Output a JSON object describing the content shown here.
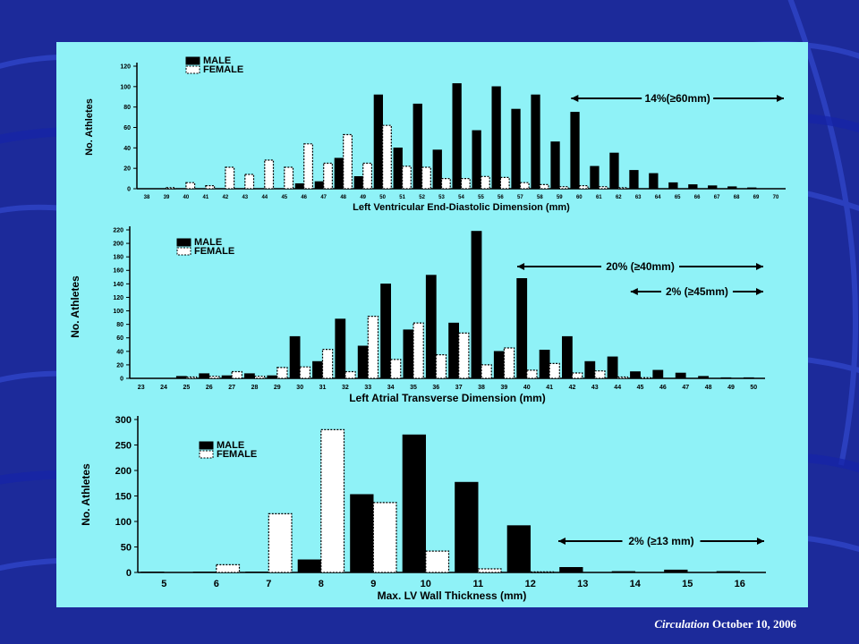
{
  "slide": {
    "background": "#1c2a9a",
    "panel_color": "#8ff2f7",
    "citation_journal": "Circulation",
    "citation_date": "October 10, 2006"
  },
  "chart_data": [
    {
      "type": "bar",
      "xlabel": "Left Ventricular End-Diastolic Dimension (mm)",
      "ylabel": "No. Athletes",
      "ylim": [
        0,
        120
      ],
      "yticks": [
        0,
        20,
        40,
        60,
        80,
        100,
        120
      ],
      "legend": "top-left",
      "categories": [
        "38",
        "39",
        "40",
        "41",
        "42",
        "43",
        "44",
        "45",
        "46",
        "47",
        "48",
        "49",
        "50",
        "51",
        "52",
        "53",
        "54",
        "55",
        "56",
        "57",
        "58",
        "59",
        "60",
        "61",
        "62",
        "63",
        "64",
        "65",
        "66",
        "67",
        "68",
        "69",
        "70"
      ],
      "series": [
        {
          "name": "MALE",
          "color": "#000000",
          "values": [
            0,
            0,
            0,
            0,
            0,
            0,
            0,
            0,
            5,
            7,
            30,
            12,
            92,
            40,
            83,
            38,
            103,
            57,
            100,
            78,
            92,
            46,
            75,
            22,
            35,
            18,
            15,
            6,
            4,
            3,
            2,
            1,
            0
          ]
        },
        {
          "name": "FEMALE",
          "color": "#ffffff",
          "values": [
            0,
            1,
            6,
            3,
            21,
            14,
            28,
            21,
            44,
            25,
            53,
            25,
            62,
            22,
            21,
            10,
            10,
            12,
            11,
            6,
            4,
            2,
            3,
            2,
            1,
            0,
            0,
            0,
            0,
            0,
            0,
            0,
            0
          ]
        }
      ],
      "annotations": [
        {
          "text": "14%(≥60mm)",
          "range": [
            "60",
            "70"
          ]
        }
      ]
    },
    {
      "type": "bar",
      "xlabel": "Left Atrial Transverse Dimension (mm)",
      "ylabel": "No. Athletes",
      "ylim": [
        0,
        220
      ],
      "yticks": [
        0,
        20,
        40,
        60,
        80,
        100,
        120,
        140,
        160,
        180,
        200,
        220
      ],
      "legend": "top-left",
      "categories": [
        "23",
        "24",
        "25",
        "26",
        "27",
        "28",
        "29",
        "30",
        "31",
        "32",
        "33",
        "34",
        "35",
        "36",
        "37",
        "38",
        "39",
        "40",
        "41",
        "42",
        "43",
        "44",
        "45",
        "46",
        "47",
        "48",
        "49",
        "50"
      ],
      "series": [
        {
          "name": "MALE",
          "color": "#000000",
          "values": [
            0,
            0,
            3,
            7,
            4,
            7,
            4,
            62,
            25,
            88,
            48,
            140,
            72,
            153,
            82,
            218,
            40,
            148,
            42,
            62,
            25,
            32,
            10,
            12,
            8,
            3,
            1,
            1
          ]
        },
        {
          "name": "FEMALE",
          "color": "#ffffff",
          "values": [
            0,
            0,
            2,
            3,
            10,
            3,
            16,
            17,
            43,
            10,
            92,
            28,
            82,
            35,
            67,
            20,
            45,
            12,
            22,
            8,
            11,
            2,
            1,
            0,
            0,
            0,
            0,
            0
          ]
        }
      ],
      "annotations": [
        {
          "text": "20% (≥40mm)",
          "range": [
            "40",
            "50"
          ]
        },
        {
          "text": "2% (≥45mm)",
          "range": [
            "45",
            "50"
          ]
        }
      ]
    },
    {
      "type": "bar",
      "xlabel": "Max. LV Wall Thickness (mm)",
      "ylabel": "No. Athletes",
      "ylim": [
        0,
        300
      ],
      "yticks": [
        0,
        50,
        100,
        150,
        200,
        250,
        300
      ],
      "legend": "top-left",
      "categories": [
        "5",
        "6",
        "7",
        "8",
        "9",
        "10",
        "11",
        "12",
        "13",
        "14",
        "15",
        "16"
      ],
      "series": [
        {
          "name": "MALE",
          "color": "#000000",
          "values": [
            1,
            1,
            1,
            25,
            153,
            270,
            177,
            92,
            10,
            2,
            5,
            2
          ]
        },
        {
          "name": "FEMALE",
          "color": "#ffffff",
          "values": [
            0,
            15,
            115,
            280,
            137,
            42,
            7,
            1,
            0,
            0,
            0,
            0
          ]
        }
      ],
      "annotations": [
        {
          "text": "2% (≥13 mm)",
          "range": [
            "13",
            "16"
          ]
        }
      ]
    }
  ]
}
